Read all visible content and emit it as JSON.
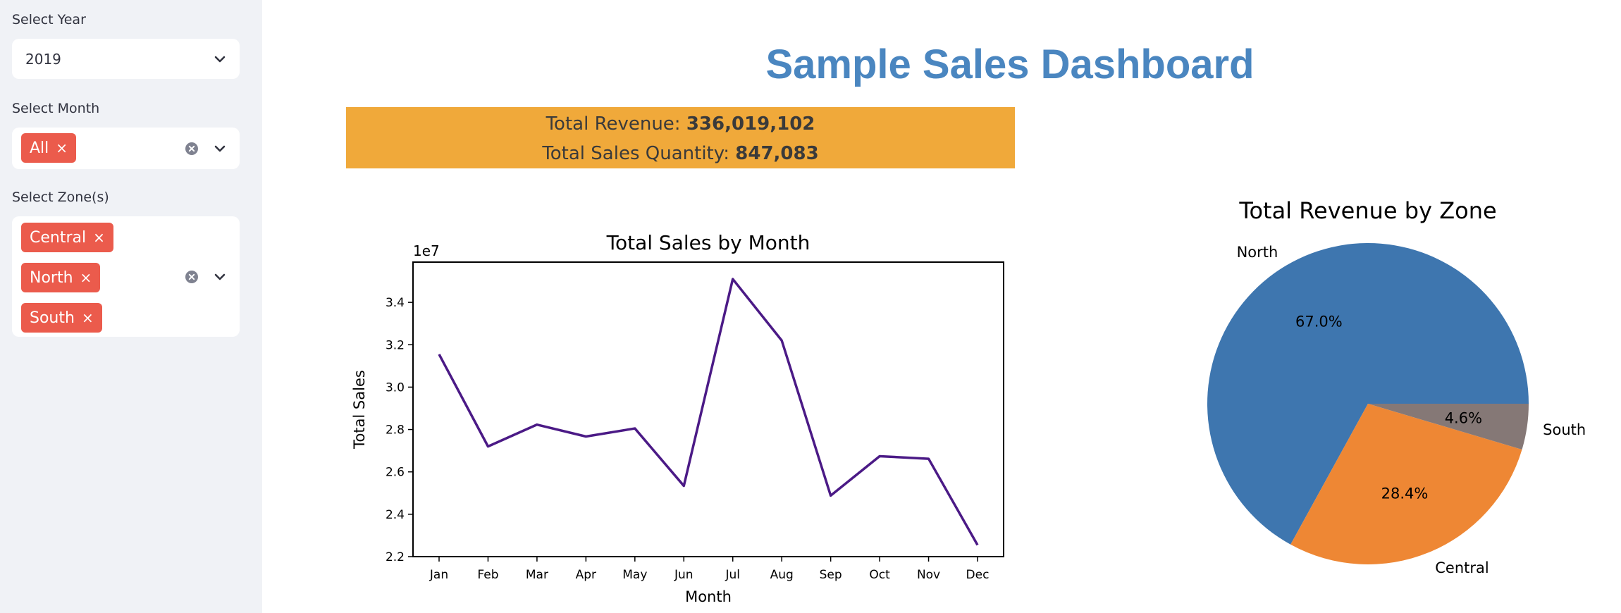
{
  "sidebar": {
    "year": {
      "label": "Select Year",
      "value": "2019"
    },
    "month": {
      "label": "Select Month",
      "tags": [
        "All"
      ]
    },
    "zones": {
      "label": "Select Zone(s)",
      "tags": [
        "Central",
        "North",
        "South"
      ]
    }
  },
  "header": {
    "title": "Sample Sales Dashboard"
  },
  "kpis": {
    "revenue_label": "Total Revenue:",
    "revenue_value": "336,019,102",
    "quantity_label": "Total Sales Quantity:",
    "quantity_value": "847,083"
  },
  "colors": {
    "tag": "#eb5b4c",
    "banner": "#f0a93a",
    "title": "#4a86c0",
    "line": "#4b1a86",
    "pie": [
      "#3e76af",
      "#ee8734",
      "#857876"
    ]
  },
  "chart_data": [
    {
      "type": "line",
      "title": "Total Sales by Month",
      "xlabel": "Month",
      "ylabel": "Total Sales",
      "y_scale_label": "1e7",
      "categories": [
        "Jan",
        "Feb",
        "Mar",
        "Apr",
        "May",
        "Jun",
        "Jul",
        "Aug",
        "Sep",
        "Oct",
        "Nov",
        "Dec"
      ],
      "values": [
        31550000,
        27200000,
        28230000,
        27670000,
        28050000,
        25340000,
        35100000,
        32200000,
        24880000,
        26740000,
        26620000,
        22550000
      ],
      "ylim": [
        22000000,
        35900000
      ],
      "yticks": [
        22000000,
        24000000,
        26000000,
        28000000,
        30000000,
        32000000,
        34000000
      ],
      "ytick_labels": [
        "2.2",
        "2.4",
        "2.6",
        "2.8",
        "3.0",
        "3.2",
        "3.4"
      ]
    },
    {
      "type": "pie",
      "title": "Total Revenue by Zone",
      "labels": [
        "North",
        "Central",
        "South"
      ],
      "values": [
        67.0,
        28.4,
        4.6
      ],
      "value_labels": [
        "67.0%",
        "28.4%",
        "4.6%"
      ]
    }
  ]
}
